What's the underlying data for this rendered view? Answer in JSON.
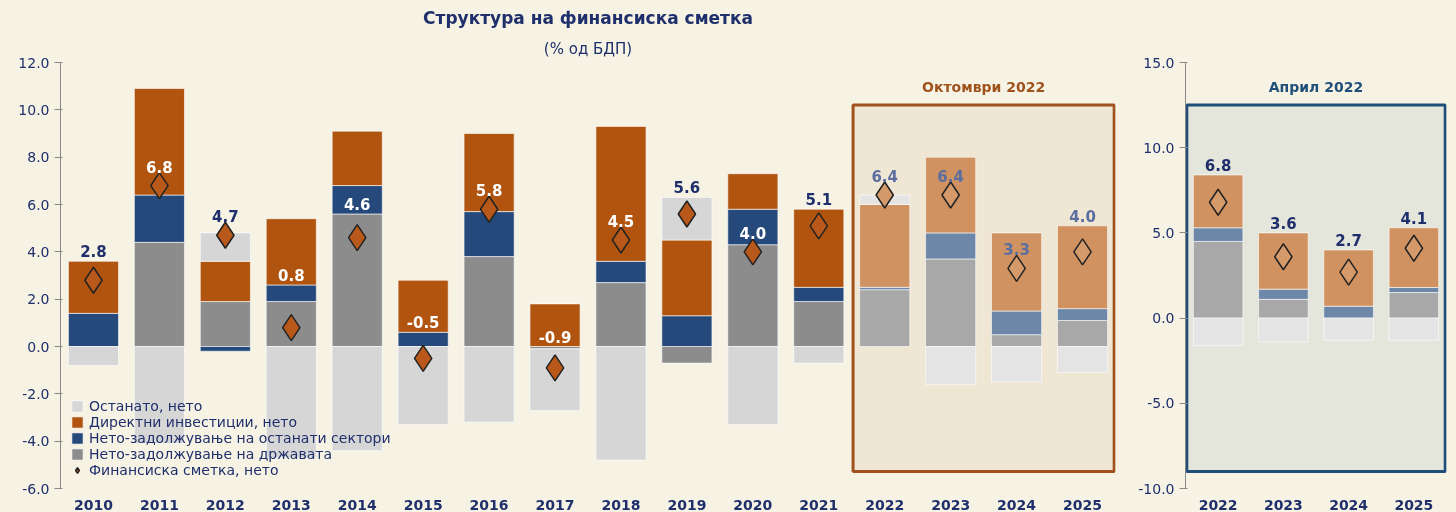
{
  "chart_data": [
    {
      "type": "bar",
      "title": "Структура на финансиска сметка",
      "subtitle": "(% од БДП)",
      "stacked": true,
      "categories": [
        "2010",
        "2011",
        "2012",
        "2013",
        "2014",
        "2015",
        "2016",
        "2017",
        "2018",
        "2019",
        "2020",
        "2021",
        "2022",
        "2023",
        "2024",
        "2025"
      ],
      "series": [
        {
          "name": "Нето-задолжување на државата",
          "colors": [
            "#8c8c8c",
            "#8c8c8c",
            "#8c8c8c",
            "#8c8c8c",
            "#8c8c8c",
            "#8c8c8c",
            "#8c8c8c",
            "#8c8c8c",
            "#8c8c8c",
            "#8c8c8c",
            "#8c8c8c",
            "#8c8c8c",
            "#a8a8a8",
            "#a8a8a8",
            "#a8a8a8",
            "#a8a8a8"
          ],
          "values": [
            0,
            4.4,
            1.9,
            1.9,
            5.6,
            0,
            3.8,
            -0.1,
            2.7,
            -0.7,
            4.3,
            1.9,
            2.4,
            3.7,
            0.5,
            1.1
          ]
        },
        {
          "name": "Нето-задолжување на останати сектори",
          "colors": [
            "#24497a",
            "#24497a",
            "#24497a",
            "#24497a",
            "#24497a",
            "#24497a",
            "#24497a",
            "#24497a",
            "#24497a",
            "#24497a",
            "#24497a",
            "#24497a",
            "#6d87a8",
            "#6d87a8",
            "#6d87a8",
            "#6d87a8"
          ],
          "values": [
            1.4,
            2.0,
            -0.2,
            0.7,
            1.2,
            0.6,
            1.9,
            0,
            0.9,
            1.3,
            1.5,
            0.6,
            0.1,
            1.1,
            1.0,
            0.5
          ]
        },
        {
          "name": "Директни инвестиции, нето",
          "colors": [
            "#b0540f",
            "#b0540f",
            "#b0540f",
            "#b0540f",
            "#b0540f",
            "#b0540f",
            "#b0540f",
            "#b0540f",
            "#b0540f",
            "#b0540f",
            "#b0540f",
            "#b0540f",
            "#cf9260",
            "#cf9260",
            "#cf9260",
            "#cf9260"
          ],
          "values": [
            2.2,
            4.5,
            1.7,
            2.8,
            2.3,
            2.2,
            3.3,
            1.8,
            5.7,
            3.2,
            1.5,
            3.3,
            3.5,
            3.2,
            3.3,
            3.5
          ]
        },
        {
          "name": "Останато, нето",
          "colors": [
            "#d6d6d6",
            "#d6d6d6",
            "#d6d6d6",
            "#d6d6d6",
            "#d6d6d6",
            "#d6d6d6",
            "#d6d6d6",
            "#d6d6d6",
            "#d6d6d6",
            "#d6d6d6",
            "#d6d6d6",
            "#d6d6d6",
            "#e4e4e4",
            "#e4e4e4",
            "#e4e4e4",
            "#e4e4e4"
          ],
          "values": [
            -0.8,
            -4.1,
            1.2,
            -4.7,
            -4.4,
            -3.3,
            -3.2,
            -2.6,
            -4.8,
            1.8,
            -3.3,
            -0.7,
            0.4,
            -1.6,
            -1.5,
            -1.1
          ]
        },
        {
          "name": "Финансиска сметка, нето",
          "type": "scatter",
          "marker": "diamond",
          "colors": [
            "#b8581a",
            "#b8581a",
            "#b8581a",
            "#b8581a",
            "#b8581a",
            "#b8581a",
            "#b8581a",
            "#b8581a",
            "#b8581a",
            "#b8581a",
            "#b8581a",
            "#b8581a",
            "#d49a6a",
            "#d49a6a",
            "#d49a6a",
            "#d49a6a"
          ],
          "values": [
            2.8,
            6.8,
            4.7,
            0.8,
            4.6,
            -0.5,
            5.8,
            -0.9,
            4.5,
            5.6,
            4.0,
            5.1,
            6.4,
            6.4,
            3.3,
            4.0
          ],
          "value_labels": [
            "2.8",
            "6.8",
            "4.7",
            "0.8",
            "4.6",
            "-0.5",
            "5.8",
            "-0.9",
            "4.5",
            "5.6",
            "4.0",
            "5.1",
            "6.4",
            "6.4",
            "3.3",
            "4.0"
          ]
        }
      ],
      "ylim": [
        -6,
        12
      ],
      "yticks": [
        {
          "value": -6,
          "label": "-6.0"
        },
        {
          "value": -4,
          "label": "-4.0"
        },
        {
          "value": -2,
          "label": "-2.0"
        },
        {
          "value": 0,
          "label": "0.0"
        },
        {
          "value": 2,
          "label": "2.0"
        },
        {
          "value": 4,
          "label": "4.0"
        },
        {
          "value": 6,
          "label": "6.0"
        },
        {
          "value": 8,
          "label": "8.0"
        },
        {
          "value": 10,
          "label": "10.0"
        },
        {
          "value": 12,
          "label": "12.0"
        }
      ],
      "bands": [
        {
          "axis": "x",
          "from": "2022",
          "to": "2025",
          "label": "Октомври 2022",
          "color": "#a0521d"
        }
      ],
      "legend": "bottom left",
      "grid": false
    },
    {
      "type": "bar",
      "stacked": true,
      "categories": [
        "2022",
        "2023",
        "2024",
        "2025"
      ],
      "series": [
        {
          "color": "#a8a8a8",
          "values": [
            4.5,
            1.1,
            0,
            1.5
          ]
        },
        {
          "color": "#6d87a8",
          "values": [
            0.8,
            0.6,
            0.7,
            0.3
          ]
        },
        {
          "color": "#cf9260",
          "values": [
            3.1,
            3.3,
            3.3,
            3.5
          ]
        },
        {
          "color": "#e4e4e4",
          "values": [
            -1.6,
            -1.4,
            -1.3,
            -1.3
          ]
        },
        {
          "type": "scatter",
          "marker": "diamond",
          "color": "#d49a6a",
          "values": [
            6.8,
            3.6,
            2.7,
            4.1
          ],
          "value_labels": [
            "6.8",
            "3.6",
            "2.7",
            "4.1"
          ]
        }
      ],
      "ylim": [
        -10,
        15
      ],
      "yticks": [
        {
          "value": -10,
          "label": "-10.0"
        },
        {
          "value": -5,
          "label": "-5.0"
        },
        {
          "value": 0,
          "label": "0.0"
        },
        {
          "value": 5,
          "label": "5.0"
        },
        {
          "value": 10,
          "label": "10.0"
        },
        {
          "value": 15,
          "label": "15.0"
        }
      ],
      "bands": [
        {
          "axis": "x",
          "from": "2022",
          "to": "2025",
          "label": "Април 2022",
          "color": "#1f4e79"
        }
      ],
      "legend": false,
      "grid": false
    }
  ]
}
